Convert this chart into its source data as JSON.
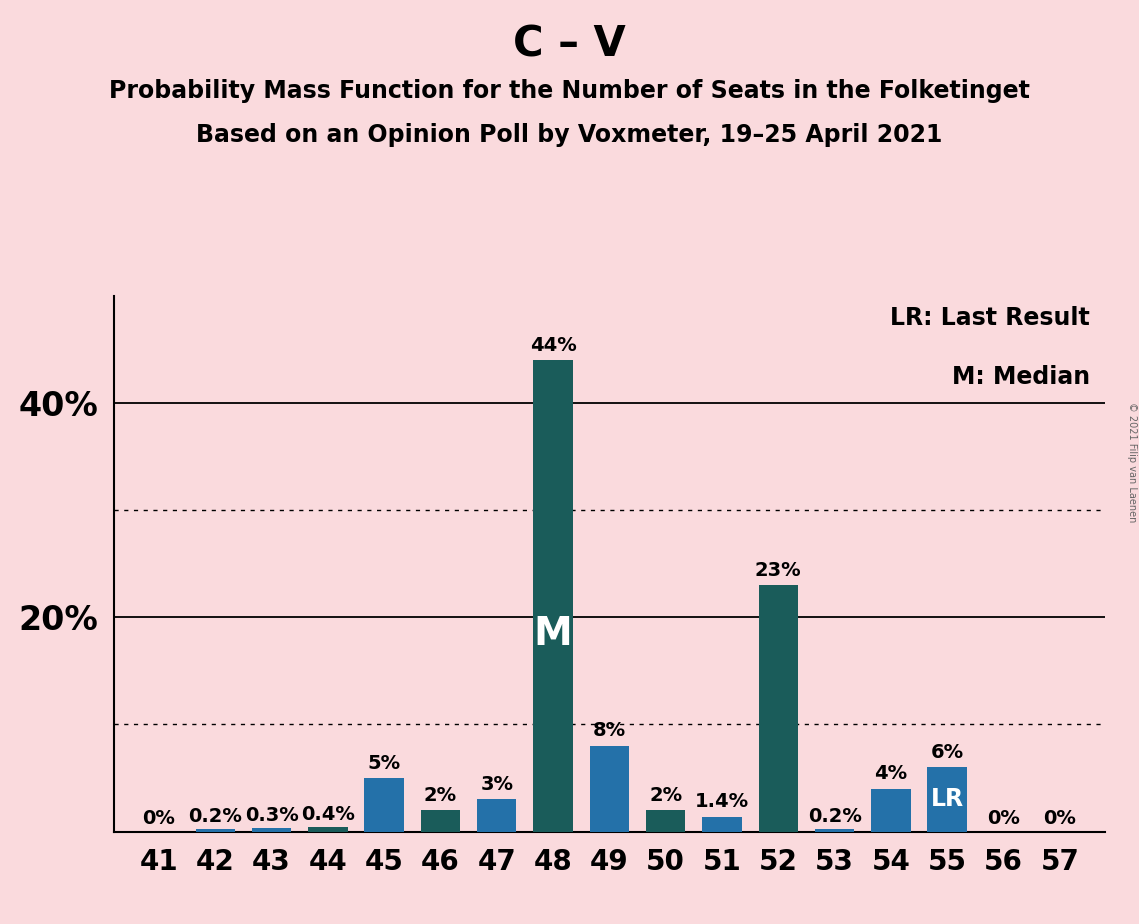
{
  "title_main": "C – V",
  "title_sub1": "Probability Mass Function for the Number of Seats in the Folketinget",
  "title_sub2": "Based on an Opinion Poll by Voxmeter, 19–25 April 2021",
  "copyright": "© 2021 Filip van Laenen",
  "legend_lr": "LR: Last Result",
  "legend_m": "M: Median",
  "seats": [
    41,
    42,
    43,
    44,
    45,
    46,
    47,
    48,
    49,
    50,
    51,
    52,
    53,
    54,
    55,
    56,
    57
  ],
  "values": [
    0.0,
    0.2,
    0.3,
    0.4,
    5.0,
    2.0,
    3.0,
    44.0,
    8.0,
    2.0,
    1.4,
    23.0,
    0.2,
    4.0,
    6.0,
    0.0,
    0.0
  ],
  "labels": [
    "0%",
    "0.2%",
    "0.3%",
    "0.4%",
    "5%",
    "2%",
    "3%",
    "44%",
    "8%",
    "2%",
    "1.4%",
    "23%",
    "0.2%",
    "4%",
    "6%",
    "0%",
    "0%"
  ],
  "bar_colors": [
    "#2471a9",
    "#2471a9",
    "#2471a9",
    "#1a5c5a",
    "#2471a9",
    "#1a5c5a",
    "#2471a9",
    "#1a5c5a",
    "#2471a9",
    "#1a5c5a",
    "#2471a9",
    "#1a5c5a",
    "#2471a9",
    "#2471a9",
    "#2471a9",
    "#2471a9",
    "#2471a9"
  ],
  "median_seat": 48,
  "lr_seat": 55,
  "background_color": "#fadadd",
  "solid_grid": [
    20,
    40
  ],
  "dotted_grid": [
    10,
    30
  ],
  "ylim": [
    0,
    50
  ],
  "bar_width": 0.7,
  "title_fontsize": 30,
  "subtitle_fontsize": 17,
  "tick_fontsize": 20,
  "label_fontsize": 14,
  "ylabel_fontsize": 24,
  "legend_fontsize": 17
}
